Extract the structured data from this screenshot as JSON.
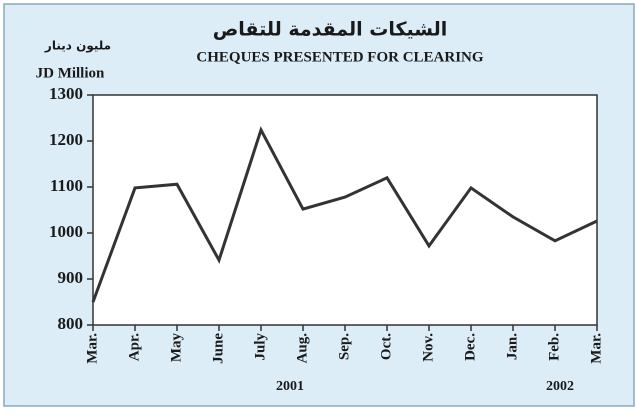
{
  "chart_data": {
    "type": "line",
    "title_ar": "الشيكات المقدمة للتقاص",
    "title": "CHEQUES PRESENTED FOR CLEARING",
    "unit_ar": "مليون دينار",
    "ylabel": "JD Million",
    "categories": [
      "Mar.",
      "Apr.",
      "May",
      "June",
      "July",
      "Aug.",
      "Sep.",
      "Oct.",
      "Nov.",
      "Dec.",
      "Jan.",
      "Feb.",
      "Mar."
    ],
    "series": [
      {
        "name": "Cheques presented for clearing",
        "color": "#333333",
        "values": [
          850,
          1098,
          1106,
          941,
          1224,
          1052,
          1078,
          1120,
          972,
          1098,
          1035,
          983,
          1026
        ]
      }
    ],
    "years": [
      "2001",
      "2002"
    ],
    "ylim": [
      800,
      1300
    ],
    "yticks": [
      800,
      900,
      1000,
      1100,
      1200,
      1300
    ]
  }
}
